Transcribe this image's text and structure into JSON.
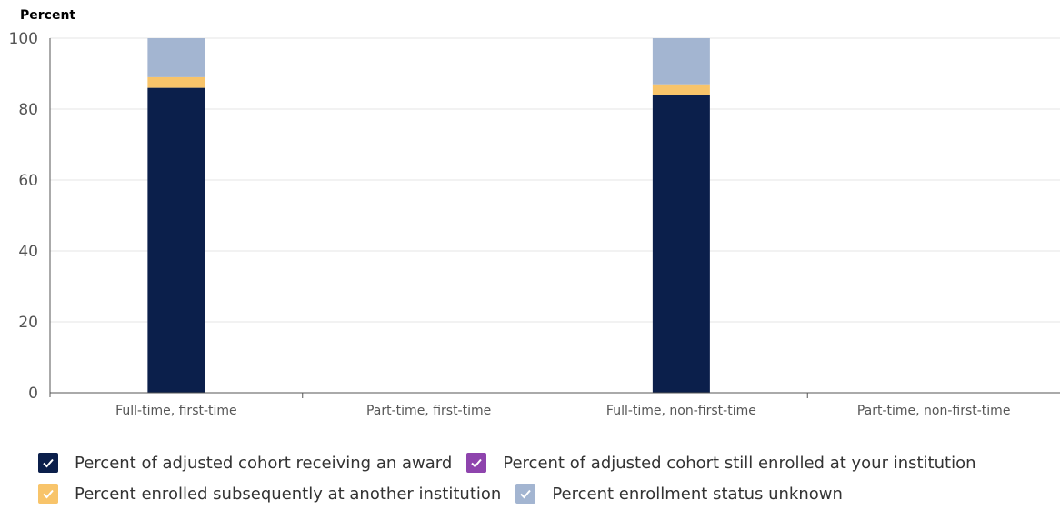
{
  "chart_data": {
    "type": "bar",
    "stacked": true,
    "ylabel": "Percent",
    "xlabel": "",
    "ylim": [
      0,
      100
    ],
    "yticks": [
      0,
      20,
      40,
      60,
      80,
      100
    ],
    "grid": true,
    "legend_position": "bottom",
    "categories": [
      "Full-time, first-time",
      "Part-time, first-time",
      "Full-time, non-first-time",
      "Part-time, non-first-time"
    ],
    "series": [
      {
        "name": "Percent of adjusted cohort receiving an award",
        "color": "#0b1f4b",
        "values": [
          86,
          0,
          84,
          0
        ]
      },
      {
        "name": "Percent of adjusted cohort still enrolled at your institution",
        "color": "#8e44ad",
        "values": [
          0,
          0,
          0,
          0
        ]
      },
      {
        "name": "Percent enrolled subsequently at another institution",
        "color": "#f8c46a",
        "values": [
          3,
          0,
          3,
          0
        ]
      },
      {
        "name": "Percent enrollment status unknown",
        "color": "#a3b5d1",
        "values": [
          11,
          0,
          13,
          0
        ]
      }
    ]
  },
  "legend_layout": [
    [
      0,
      1
    ],
    [
      2,
      3
    ]
  ]
}
